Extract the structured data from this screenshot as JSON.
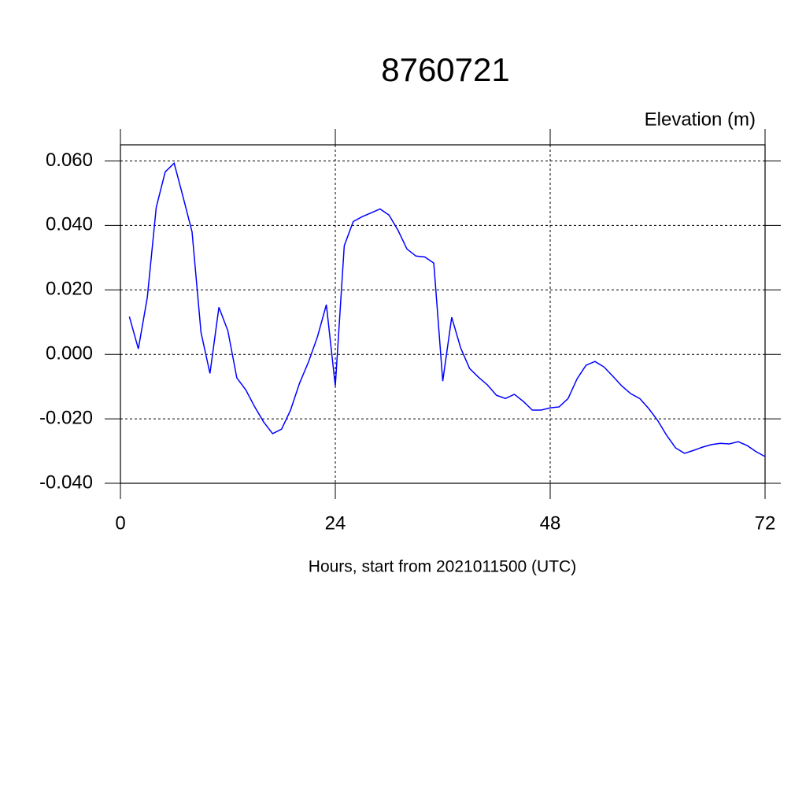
{
  "chart_data": {
    "type": "line",
    "title": "8760721",
    "y_axis_label": "Elevation (m)",
    "x_axis_label": "Hours, start from 2021011500 (UTC)",
    "color": "#0000ff",
    "grid": true,
    "xlim": [
      0,
      72
    ],
    "xticks": [
      0,
      24,
      48,
      72
    ],
    "ylim": [
      -0.04,
      0.065
    ],
    "yticks": [
      {
        "value": -0.04,
        "label": "-0.040"
      },
      {
        "value": -0.02,
        "label": "-0.020"
      },
      {
        "value": 0,
        "label": "0.000"
      },
      {
        "value": 0.02,
        "label": "0.020"
      },
      {
        "value": 0.04,
        "label": "0.040"
      },
      {
        "value": 0.06,
        "label": "0.060"
      }
    ],
    "x": [
      1,
      2,
      3,
      4,
      5,
      6,
      7,
      8,
      9,
      10,
      11,
      12,
      13,
      14,
      15,
      16,
      17,
      18,
      19,
      20,
      21,
      22,
      23,
      24,
      25,
      26,
      27,
      28,
      29,
      30,
      31,
      32,
      33,
      34,
      35,
      36,
      37,
      38,
      39,
      40,
      41,
      42,
      43,
      44,
      45,
      46,
      47,
      48,
      49,
      50,
      51,
      52,
      53,
      54,
      55,
      56,
      57,
      58,
      59,
      60,
      61,
      62,
      63,
      64,
      65,
      66,
      67,
      68,
      69,
      70,
      71,
      72
    ],
    "values": [
      0.0117,
      0.0017,
      0.0176,
      0.0456,
      0.0566,
      0.0593,
      0.0488,
      0.038,
      0.0068,
      -0.0059,
      0.0146,
      0.0073,
      -0.0073,
      -0.011,
      -0.0163,
      -0.021,
      -0.0246,
      -0.0232,
      -0.0173,
      -0.009,
      -0.0024,
      0.0054,
      0.0154,
      -0.0098,
      0.0337,
      0.0412,
      0.0427,
      0.0439,
      0.0451,
      0.0432,
      0.0385,
      0.0327,
      0.0305,
      0.0302,
      0.0283,
      -0.0083,
      0.0115,
      0.002,
      -0.0044,
      -0.0071,
      -0.0095,
      -0.0127,
      -0.0137,
      -0.0124,
      -0.0146,
      -0.0173,
      -0.0173,
      -0.0166,
      -0.0163,
      -0.0137,
      -0.0076,
      -0.0034,
      -0.0022,
      -0.0039,
      -0.0068,
      -0.0098,
      -0.0122,
      -0.0137,
      -0.0168,
      -0.0205,
      -0.0251,
      -0.029,
      -0.0307,
      -0.0298,
      -0.0288,
      -0.028,
      -0.0276,
      -0.0278,
      -0.0271,
      -0.0283,
      -0.0302,
      -0.0317
    ]
  }
}
